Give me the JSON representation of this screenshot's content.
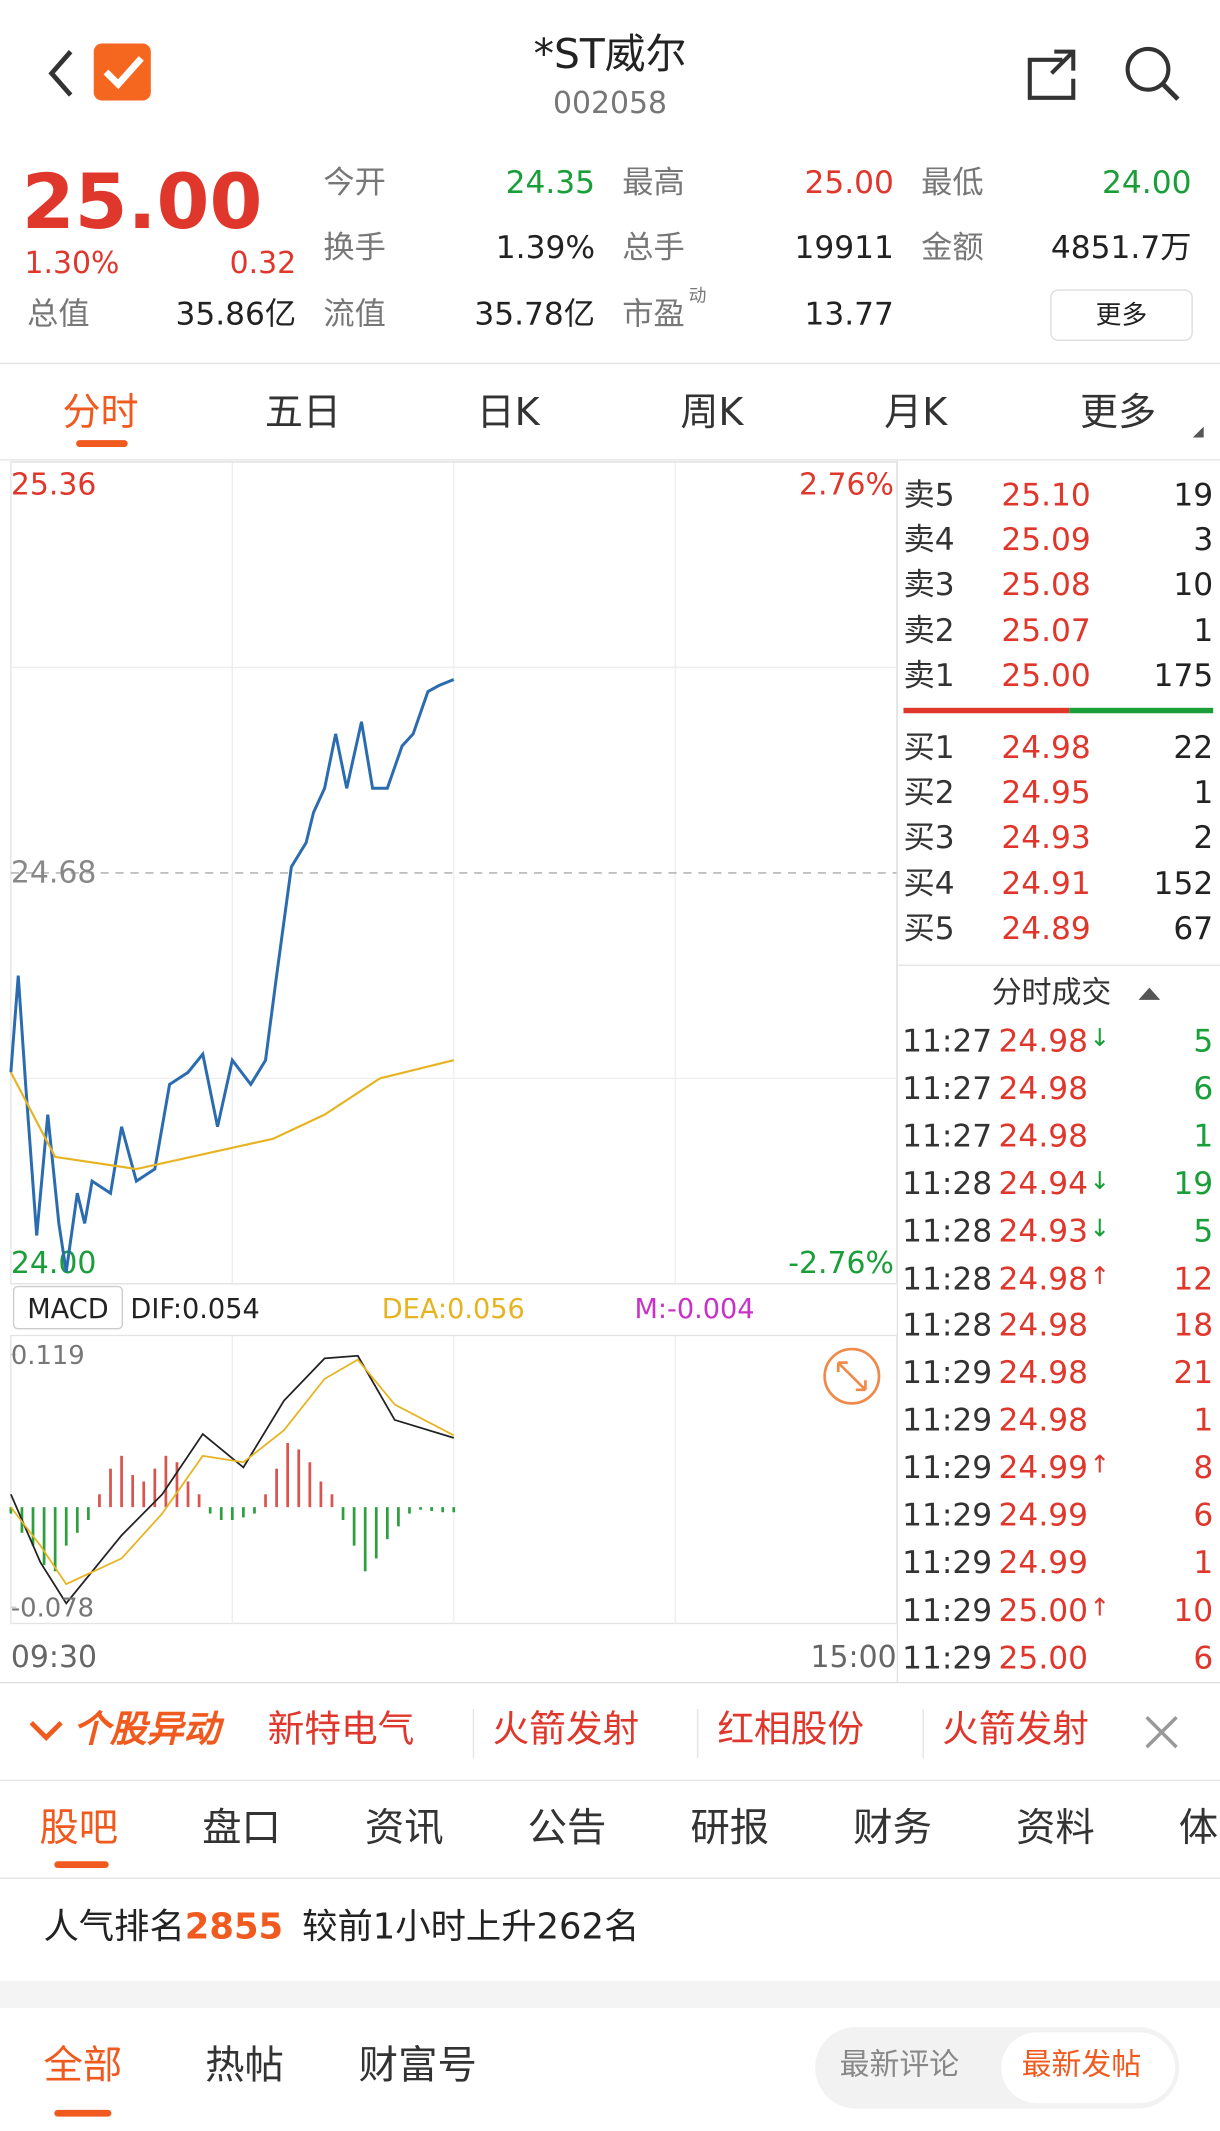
{
  "header": {
    "title": "*ST威尔",
    "code": "002058"
  },
  "quote": {
    "price": "25.00",
    "change_pct": "1.30%",
    "change": "0.32",
    "open": {
      "label": "今开",
      "value": "24.35"
    },
    "high": {
      "label": "最高",
      "value": "25.00"
    },
    "low": {
      "label": "最低",
      "value": "24.00"
    },
    "turnover": {
      "label": "换手",
      "value": "1.39%"
    },
    "volume": {
      "label": "总手",
      "value": "19911"
    },
    "amount": {
      "label": "金额",
      "value": "4851.7万"
    },
    "market_cap": {
      "label": "总值",
      "value": "35.86亿"
    },
    "float_cap": {
      "label": "流值",
      "value": "35.78亿"
    },
    "pe": {
      "label": "市盈",
      "sup": "动",
      "value": "13.77"
    },
    "more": "更多"
  },
  "tabs": [
    "分时",
    "五日",
    "日K",
    "周K",
    "月K",
    "更多"
  ],
  "chart_data": [
    {
      "type": "line",
      "xlim": [
        0,
        240
      ],
      "xticks": [
        {
          "value": 0,
          "label": "09:30"
        },
        {
          "value": 240,
          "label": "15:00"
        }
      ],
      "ylim": [
        24,
        25.36
      ],
      "yticks": [
        25.36,
        24.68,
        {
          "value": 24,
          "label": "24.00"
        }
      ],
      "y2lim": [
        -2.76,
        2.76
      ],
      "y2ticks": [
        {
          "value": 2.76,
          "label": "2.76%"
        },
        {
          "value": -2.76,
          "label": "-2.76%"
        }
      ],
      "series": [
        {
          "color": "#2b6cb0",
          "x": [
            0,
            2,
            4,
            7,
            10,
            13,
            15,
            18,
            20,
            22,
            27,
            30,
            34,
            39,
            43,
            48,
            52,
            56,
            60,
            65,
            69,
            72,
            76,
            80,
            82,
            85,
            88,
            91,
            95,
            98,
            102,
            106,
            109,
            113,
            116,
            120
          ],
          "values": [
            24.35,
            24.51,
            24.33,
            24.08,
            24.28,
            24.1,
            24.02,
            24.15,
            24.1,
            24.17,
            24.15,
            24.26,
            24.17,
            24.19,
            24.33,
            24.35,
            24.38,
            24.26,
            24.37,
            24.33,
            24.37,
            24.51,
            24.69,
            24.73,
            24.78,
            24.82,
            24.91,
            24.82,
            24.93,
            24.82,
            24.82,
            24.89,
            24.91,
            24.98,
            24.99,
            25.0
          ]
        },
        {
          "color": "#e6b422",
          "x": [
            0,
            12,
            34,
            71,
            85,
            100,
            120
          ],
          "values": [
            24.35,
            24.21,
            24.19,
            24.24,
            24.28,
            24.34,
            24.37
          ]
        }
      ]
    },
    {
      "type": "macd",
      "label": "MACD",
      "xlim": [
        0,
        240
      ],
      "ylim": [
        -0.078,
        0.119
      ],
      "yticks": [
        0.119,
        -0.078
      ],
      "series": [
        {
          "name": "DIF:0.054",
          "color": "#222222",
          "x": [
            0,
            8,
            15,
            30,
            41,
            52,
            63,
            74,
            85,
            94,
            104,
            120
          ],
          "values": [
            0.01,
            -0.043,
            -0.075,
            -0.022,
            0.01,
            0.057,
            0.031,
            0.083,
            0.116,
            0.118,
            0.068,
            0.054
          ]
        },
        {
          "name": "DEA:0.056",
          "color": "#e6b422",
          "x": [
            0,
            8,
            15,
            30,
            41,
            52,
            63,
            74,
            85,
            94,
            104,
            120
          ],
          "values": [
            0,
            -0.03,
            -0.06,
            -0.04,
            -0.005,
            0.04,
            0.035,
            0.06,
            0.1,
            0.115,
            0.08,
            0.056
          ]
        },
        {
          "name": "M:-0.004",
          "color": "#c832c8",
          "up_color": "#d9534f",
          "down_color": "#2e9e3e",
          "x": [
            0,
            3,
            6,
            9,
            12,
            15,
            18,
            21,
            24,
            27,
            30,
            33,
            36,
            39,
            42,
            45,
            48,
            51,
            54,
            57,
            60,
            63,
            66,
            69,
            72,
            75,
            78,
            81,
            84,
            87,
            90,
            93,
            96,
            99,
            102,
            105,
            108,
            111,
            114,
            117,
            120
          ],
          "values": [
            -0.005,
            -0.02,
            -0.03,
            -0.045,
            -0.05,
            -0.03,
            -0.02,
            -0.01,
            0.01,
            0.03,
            0.04,
            0.025,
            0.02,
            0.03,
            0.04,
            0.035,
            0.02,
            0.01,
            -0.005,
            -0.01,
            -0.01,
            -0.008,
            -0.005,
            0.01,
            0.03,
            0.05,
            0.045,
            0.035,
            0.02,
            0.01,
            -0.01,
            -0.03,
            -0.05,
            -0.04,
            -0.025,
            -0.015,
            -0.005,
            -0.002,
            -0.003,
            -0.004,
            -0.004
          ]
        }
      ]
    }
  ],
  "order_book": {
    "asks": [
      {
        "label": "卖5",
        "price": "25.10",
        "volume": "19"
      },
      {
        "label": "卖4",
        "price": "25.09",
        "volume": "3"
      },
      {
        "label": "卖3",
        "price": "25.08",
        "volume": "10"
      },
      {
        "label": "卖2",
        "price": "25.07",
        "volume": "1"
      },
      {
        "label": "卖1",
        "price": "25.00",
        "volume": "175"
      }
    ],
    "bids": [
      {
        "label": "买1",
        "price": "24.98",
        "volume": "22"
      },
      {
        "label": "买2",
        "price": "24.95",
        "volume": "1"
      },
      {
        "label": "买3",
        "price": "24.93",
        "volume": "2"
      },
      {
        "label": "买4",
        "price": "24.91",
        "volume": "152"
      },
      {
        "label": "买5",
        "price": "24.89",
        "volume": "67"
      }
    ]
  },
  "trades": {
    "title": "分时成交",
    "rows": [
      {
        "time": "11:27",
        "price": "24.98",
        "arrow": "↓",
        "volume": "5",
        "color": "#1a9e3a"
      },
      {
        "time": "11:27",
        "price": "24.98",
        "volume": "6",
        "color": "#1a9e3a"
      },
      {
        "time": "11:27",
        "price": "24.98",
        "volume": "1",
        "color": "#1a9e3a"
      },
      {
        "time": "11:28",
        "price": "24.94",
        "arrow": "↓",
        "volume": "19",
        "color": "#1a9e3a"
      },
      {
        "time": "11:28",
        "price": "24.93",
        "arrow": "↓",
        "volume": "5",
        "color": "#1a9e3a"
      },
      {
        "time": "11:28",
        "price": "24.98",
        "arrow": "↑",
        "volume": "12",
        "color": "#e0372c"
      },
      {
        "time": "11:28",
        "price": "24.98",
        "volume": "18",
        "color": "#e0372c"
      },
      {
        "time": "11:29",
        "price": "24.98",
        "volume": "21",
        "color": "#e0372c"
      },
      {
        "time": "11:29",
        "price": "24.98",
        "volume": "1",
        "color": "#e0372c"
      },
      {
        "time": "11:29",
        "price": "24.99",
        "arrow": "↑",
        "volume": "8",
        "color": "#e0372c"
      },
      {
        "time": "11:29",
        "price": "24.99",
        "volume": "6",
        "color": "#e0372c"
      },
      {
        "time": "11:29",
        "price": "24.99",
        "volume": "1",
        "color": "#e0372c"
      },
      {
        "time": "11:29",
        "price": "25.00",
        "arrow": "↑",
        "volume": "10",
        "color": "#e0372c"
      },
      {
        "time": "11:29",
        "price": "25.00",
        "volume": "6",
        "color": "#e0372c"
      }
    ]
  },
  "alert": {
    "title": "个股异动",
    "items": [
      "新特电气",
      "火箭发射",
      "红相股份",
      "火箭发射"
    ]
  },
  "sections": [
    "股吧",
    "盘口",
    "资讯",
    "公告",
    "研报",
    "财务",
    "资料",
    "体"
  ],
  "popularity": {
    "label": "人气排名",
    "rank": "2855",
    "note": "较前1小时上升262名"
  },
  "feed_tabs": [
    "全部",
    "热帖",
    "财富号"
  ],
  "sort": [
    "最新评论",
    "最新发帖"
  ]
}
